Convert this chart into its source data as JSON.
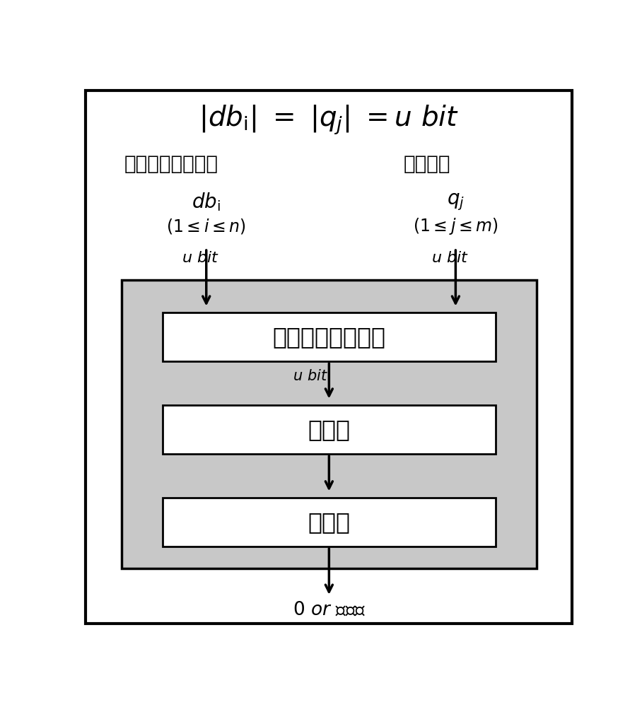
{
  "left_label": "数据库中基因序列",
  "right_label": "查询序列",
  "box1_text": "比特位的异或运算",
  "box2_text": "计数器",
  "box3_text": "比较器",
  "output_text": "0 or 随机数",
  "bg_color": "#c8c8c8",
  "box_color": "#ffffff",
  "border_color": "#000000"
}
